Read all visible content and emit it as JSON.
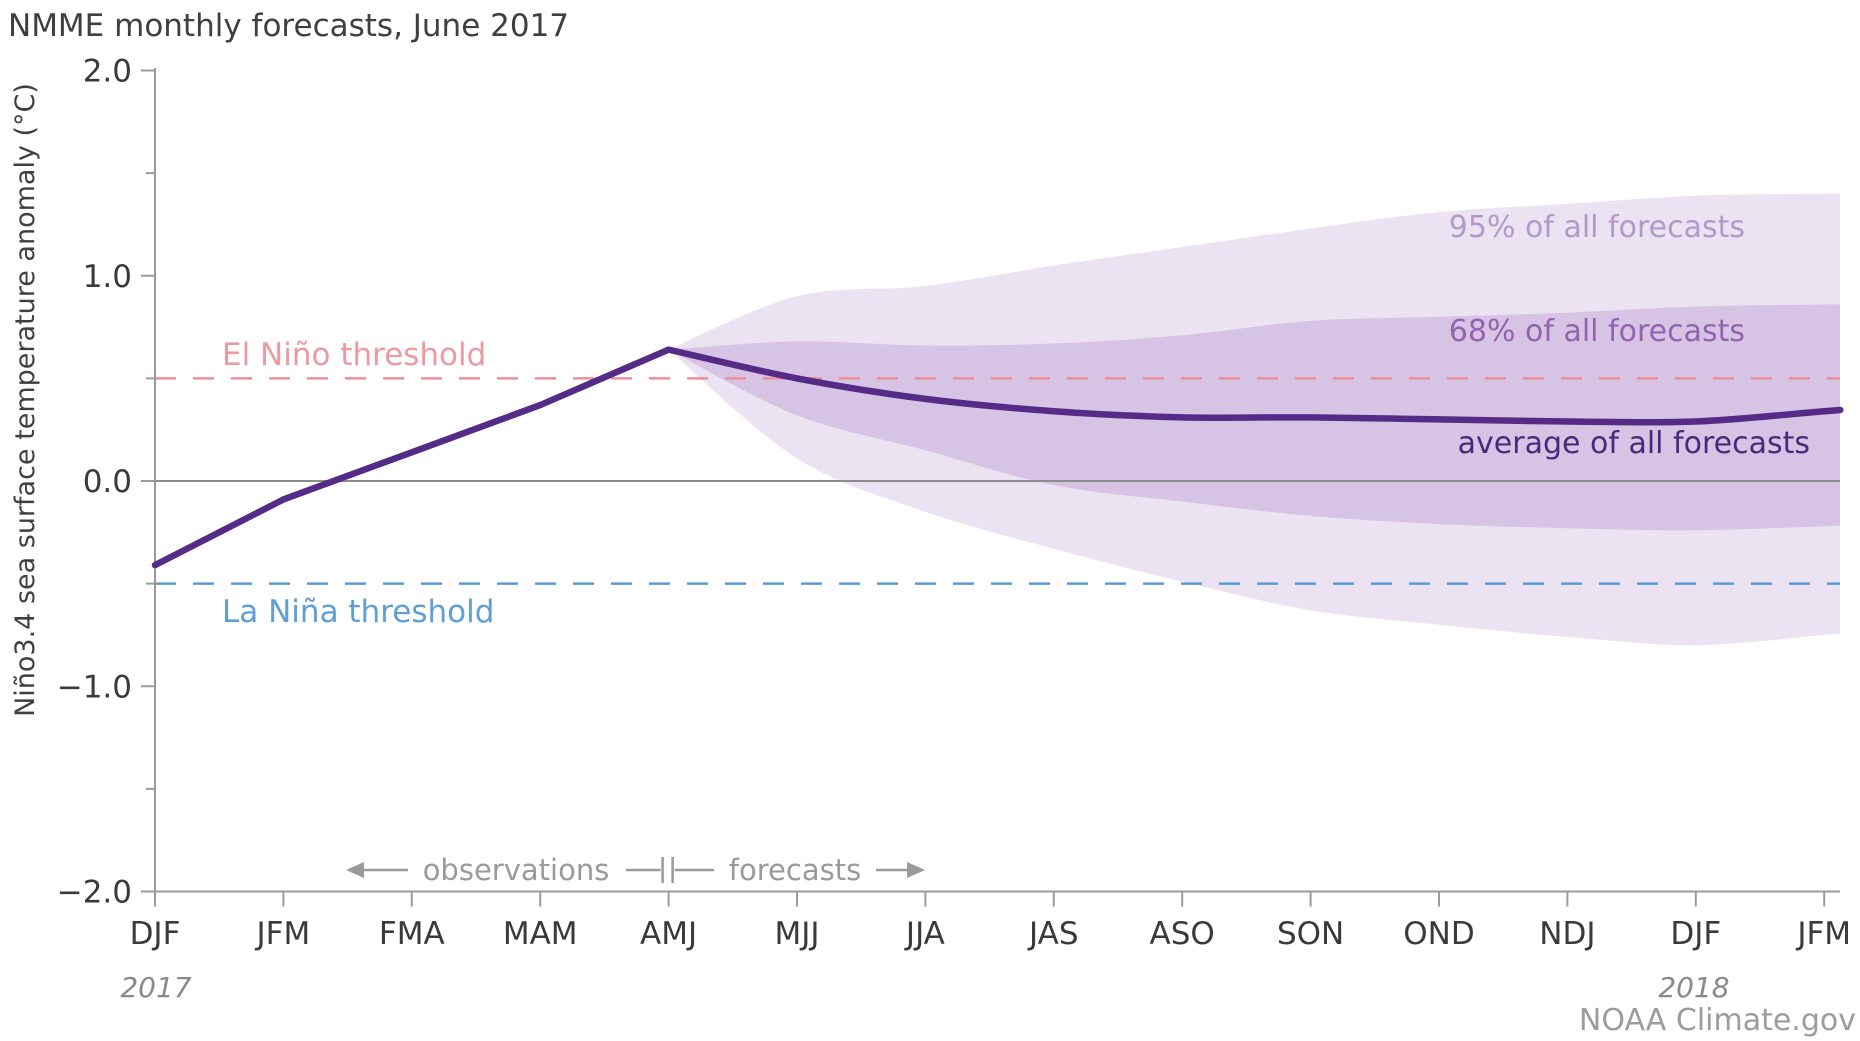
{
  "title": "NMME monthly forecasts, June 2017",
  "axes": {
    "y_label": "Niño3.4 sea surface temperature anomaly (°C)",
    "y_tick_labels": [
      "2.0",
      "1.0",
      "0.0",
      "−1.0",
      "−2.0"
    ],
    "y_tick_values": [
      2.0,
      1.0,
      0.0,
      -1.0,
      -2.0
    ],
    "y_minor_tick_values": [
      1.5,
      0.5,
      -0.5,
      -1.5
    ],
    "y_range": [
      -2.0,
      2.0
    ],
    "x_labels": [
      "DJF",
      "JFM",
      "FMA",
      "MAM",
      "AMJ",
      "MJJ",
      "JJA",
      "JAS",
      "ASO",
      "SON",
      "OND",
      "NDJ",
      "DJF",
      "JFM"
    ],
    "x_year_start": "2017",
    "x_year_end": "2018"
  },
  "thresholds": {
    "el_nino": {
      "label": "El Niño threshold",
      "value": 0.5
    },
    "la_nina": {
      "label": "La Niña threshold",
      "value": -0.5
    }
  },
  "annotations": {
    "observations_label": "observations",
    "forecasts_label": "forecasts",
    "band95_label": "95% of all forecasts",
    "band68_label": "68% of all forecasts",
    "mean_label": "average of all forecasts",
    "credit": "NOAA Climate.gov"
  },
  "chart_data": {
    "type": "line",
    "title": "NMME monthly forecasts, June 2017",
    "xlabel": "",
    "ylabel": "Niño3.4 sea surface temperature anomaly (°C)",
    "ylim": [
      -2.0,
      2.0
    ],
    "grid": "zero-line only",
    "legend_position": "labels inline at right",
    "categories": [
      "DJF",
      "JFM",
      "FMA",
      "MAM",
      "AMJ",
      "MJJ",
      "JJA",
      "JAS",
      "ASO",
      "SON",
      "OND",
      "NDJ",
      "DJF",
      "JFM"
    ],
    "forecast_start_category_index": 4,
    "series": [
      {
        "name": "average of all forecasts",
        "values": [
          -0.41,
          -0.09,
          0.14,
          0.37,
          0.64,
          0.5,
          0.4,
          0.34,
          0.31,
          0.31,
          0.3,
          0.29,
          0.29,
          0.34
        ]
      },
      {
        "name": "68% band upper",
        "values": [
          null,
          null,
          null,
          null,
          0.64,
          0.68,
          0.66,
          0.67,
          0.71,
          0.78,
          0.8,
          0.82,
          0.85,
          0.86
        ]
      },
      {
        "name": "68% band lower",
        "values": [
          null,
          null,
          null,
          null,
          0.64,
          0.32,
          0.15,
          -0.02,
          -0.1,
          -0.17,
          -0.21,
          -0.23,
          -0.24,
          -0.22
        ]
      },
      {
        "name": "95% band upper",
        "values": [
          null,
          null,
          null,
          null,
          0.64,
          0.9,
          0.95,
          1.05,
          1.14,
          1.23,
          1.31,
          1.35,
          1.39,
          1.4
        ]
      },
      {
        "name": "95% band lower",
        "values": [
          null,
          null,
          null,
          null,
          0.64,
          0.11,
          -0.15,
          -0.33,
          -0.49,
          -0.63,
          -0.7,
          -0.76,
          -0.8,
          -0.75
        ]
      }
    ],
    "el_nino_threshold": 0.5,
    "la_nina_threshold": -0.5
  },
  "colors": {
    "mean_line": "#542b87",
    "band_68": "#d7c3e4",
    "band_95": "#ebe2f2",
    "el_nino_dash": "#ed8f98",
    "la_nina_dash": "#5b9bd5",
    "zero_line": "#8c8c8c",
    "axis": "#9a9a9a",
    "tick_text": "#3a3a3a",
    "annotation_gray": "#9a9a9a"
  }
}
